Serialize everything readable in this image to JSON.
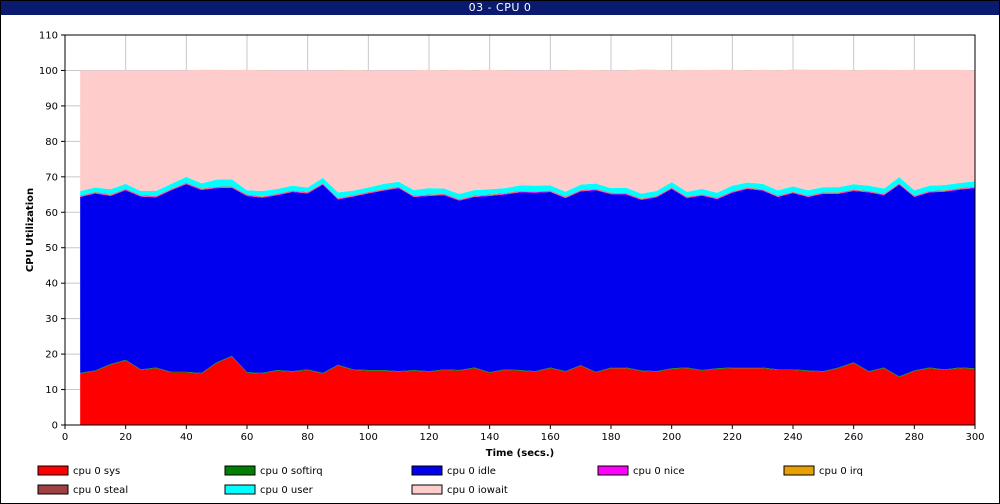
{
  "window": {
    "title": "03 - CPU 0"
  },
  "chart_data": {
    "type": "area",
    "stacked": true,
    "title": "03 - CPU 0",
    "xlabel": "Time (secs.)",
    "ylabel": "CPU Utilization",
    "xlim": [
      0,
      300
    ],
    "ylim": [
      0,
      110
    ],
    "xticks": [
      0,
      20,
      40,
      60,
      80,
      100,
      120,
      140,
      160,
      180,
      200,
      220,
      240,
      260,
      280,
      300
    ],
    "yticks": [
      0,
      10,
      20,
      30,
      40,
      50,
      60,
      70,
      80,
      90,
      100,
      110
    ],
    "grid": true,
    "legend_position": "bottom",
    "x": [
      5,
      10,
      15,
      20,
      25,
      30,
      35,
      40,
      45,
      50,
      55,
      60,
      65,
      70,
      75,
      80,
      85,
      90,
      95,
      100,
      105,
      110,
      115,
      120,
      125,
      130,
      135,
      140,
      145,
      150,
      155,
      160,
      165,
      170,
      175,
      180,
      185,
      190,
      195,
      200,
      205,
      210,
      215,
      220,
      225,
      230,
      235,
      240,
      245,
      250,
      255,
      260,
      265,
      270,
      275,
      280,
      285,
      290,
      295,
      300
    ],
    "series": [
      {
        "name": "cpu 0 sys",
        "color": "#ff0000",
        "values": [
          14.5,
          15.2,
          17.0,
          18.2,
          15.5,
          16.0,
          14.8,
          14.8,
          14.5,
          17.5,
          19.3,
          14.7,
          14.5,
          15.3,
          15.0,
          15.5,
          14.5,
          16.8,
          15.5,
          15.3,
          15.3,
          15.0,
          15.3,
          15.0,
          15.5,
          15.3,
          16.0,
          14.7,
          15.5,
          15.3,
          15.0,
          16.0,
          15.0,
          16.7,
          14.8,
          16.0,
          16.0,
          15.2,
          15.0,
          15.8,
          16.0,
          15.3,
          15.8,
          16.0,
          16.0,
          16.0,
          15.5,
          15.5,
          15.2,
          15.0,
          16.0,
          17.5,
          15.0,
          16.0,
          13.5,
          15.2,
          16.0,
          15.5,
          16.0,
          15.8
        ]
      },
      {
        "name": "cpu 0 softirq",
        "color": "#008000",
        "values": [
          0.2,
          0.2,
          0.2,
          0.2,
          0.2,
          0.2,
          0.2,
          0.2,
          0.2,
          0.2,
          0.2,
          0.2,
          0.2,
          0.2,
          0.2,
          0.2,
          0.2,
          0.2,
          0.2,
          0.2,
          0.2,
          0.2,
          0.2,
          0.2,
          0.2,
          0.2,
          0.2,
          0.2,
          0.2,
          0.2,
          0.2,
          0.2,
          0.2,
          0.2,
          0.2,
          0.2,
          0.2,
          0.2,
          0.2,
          0.2,
          0.2,
          0.2,
          0.2,
          0.2,
          0.2,
          0.2,
          0.2,
          0.2,
          0.2,
          0.2,
          0.2,
          0.2,
          0.2,
          0.2,
          0.2,
          0.2,
          0.2,
          0.2,
          0.2,
          0.2
        ]
      },
      {
        "name": "cpu 0 idle",
        "color": "#0000ee",
        "values": [
          49.6,
          49.9,
          47.4,
          47.8,
          48.7,
          48.0,
          51.2,
          52.9,
          51.6,
          49.1,
          47.4,
          49.7,
          49.4,
          49.3,
          50.5,
          49.6,
          53.1,
          46.6,
          48.7,
          49.8,
          50.6,
          51.6,
          48.8,
          49.4,
          49.1,
          47.8,
          48.1,
          49.7,
          49.3,
          50.1,
          50.3,
          49.5,
          48.8,
          49.0,
          51.2,
          48.9,
          48.8,
          48.1,
          49.0,
          50.6,
          47.8,
          49.2,
          47.7,
          49.3,
          50.4,
          49.9,
          48.6,
          49.7,
          48.9,
          50.0,
          49.0,
          48.3,
          50.4,
          48.6,
          54.1,
          48.9,
          49.4,
          50.1,
          50.2,
          50.8
        ]
      },
      {
        "name": "cpu 0 nice",
        "color": "#ff00ff",
        "values": [
          0.2,
          0.2,
          0.2,
          0.2,
          0.2,
          0.2,
          0.2,
          0.2,
          0.2,
          0.2,
          0.2,
          0.2,
          0.2,
          0.2,
          0.2,
          0.2,
          0.2,
          0.2,
          0.2,
          0.2,
          0.2,
          0.2,
          0.2,
          0.2,
          0.2,
          0.2,
          0.2,
          0.2,
          0.2,
          0.2,
          0.2,
          0.2,
          0.2,
          0.2,
          0.2,
          0.2,
          0.2,
          0.2,
          0.2,
          0.2,
          0.2,
          0.2,
          0.2,
          0.2,
          0.2,
          0.2,
          0.2,
          0.2,
          0.2,
          0.2,
          0.2,
          0.2,
          0.2,
          0.2,
          0.2,
          0.2,
          0.2,
          0.2,
          0.2,
          0.2
        ]
      },
      {
        "name": "cpu 0 irq",
        "color": "#e8a000",
        "values": [
          0.1,
          0.1,
          0.1,
          0.1,
          0.1,
          0.1,
          0.1,
          0.1,
          0.1,
          0.1,
          0.1,
          0.1,
          0.1,
          0.1,
          0.1,
          0.1,
          0.1,
          0.1,
          0.1,
          0.1,
          0.1,
          0.1,
          0.1,
          0.1,
          0.1,
          0.1,
          0.1,
          0.1,
          0.1,
          0.1,
          0.1,
          0.1,
          0.1,
          0.1,
          0.1,
          0.1,
          0.1,
          0.1,
          0.1,
          0.1,
          0.1,
          0.1,
          0.1,
          0.1,
          0.1,
          0.1,
          0.1,
          0.1,
          0.1,
          0.1,
          0.1,
          0.1,
          0.1,
          0.1,
          0.1,
          0.1,
          0.1,
          0.1,
          0.1,
          0.1
        ]
      },
      {
        "name": "cpu 0 steal",
        "color": "#a04040",
        "values": [
          0.1,
          0.1,
          0.1,
          0.1,
          0.1,
          0.1,
          0.1,
          0.1,
          0.1,
          0.1,
          0.1,
          0.1,
          0.1,
          0.1,
          0.1,
          0.1,
          0.1,
          0.1,
          0.1,
          0.1,
          0.1,
          0.1,
          0.1,
          0.1,
          0.1,
          0.1,
          0.1,
          0.1,
          0.1,
          0.1,
          0.1,
          0.1,
          0.1,
          0.1,
          0.1,
          0.1,
          0.1,
          0.1,
          0.1,
          0.1,
          0.1,
          0.1,
          0.1,
          0.1,
          0.1,
          0.1,
          0.1,
          0.1,
          0.1,
          0.1,
          0.1,
          0.1,
          0.1,
          0.1,
          0.1,
          0.1,
          0.1,
          0.1,
          0.1,
          0.1
        ]
      },
      {
        "name": "cpu 0 user",
        "color": "#00ffff",
        "values": [
          1.3,
          1.3,
          1.5,
          1.4,
          1.2,
          1.4,
          1.4,
          1.7,
          1.5,
          2.0,
          2.0,
          1.2,
          1.5,
          1.4,
          1.4,
          1.3,
          1.5,
          1.6,
          1.3,
          1.3,
          1.5,
          1.4,
          1.6,
          1.8,
          1.5,
          1.5,
          1.6,
          1.5,
          1.4,
          1.6,
          1.6,
          1.5,
          1.4,
          1.5,
          1.5,
          1.3,
          1.5,
          1.4,
          1.4,
          1.5,
          1.4,
          1.5,
          1.4,
          1.6,
          1.4,
          1.5,
          1.5,
          1.5,
          1.5,
          1.5,
          1.5,
          1.5,
          1.5,
          1.5,
          1.7,
          1.5,
          1.5,
          1.5,
          1.5,
          1.5
        ]
      },
      {
        "name": "cpu 0 iowait",
        "color": "#ffcccc",
        "values": [
          34.0,
          33.0,
          33.5,
          32.0,
          34.0,
          34.0,
          32.0,
          30.0,
          32.0,
          31.0,
          30.8,
          34.0,
          34.0,
          33.4,
          32.5,
          33.0,
          30.3,
          34.4,
          34.0,
          33.0,
          32.0,
          31.4,
          33.7,
          33.4,
          33.3,
          35.0,
          33.7,
          33.7,
          33.2,
          32.4,
          32.5,
          32.4,
          34.2,
          32.4,
          32.0,
          33.2,
          33.1,
          35.0,
          34.2,
          31.5,
          34.4,
          33.5,
          34.7,
          32.7,
          31.6,
          32.2,
          33.8,
          33.0,
          34.0,
          33.1,
          33.1,
          32.1,
          32.7,
          33.5,
          30.2,
          34.0,
          32.7,
          32.5,
          31.9,
          31.3
        ]
      }
    ]
  }
}
